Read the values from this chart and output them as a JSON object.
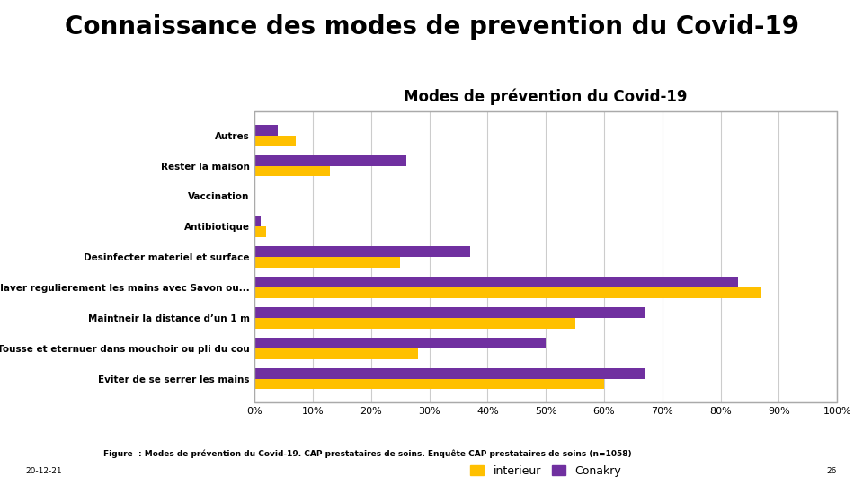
{
  "title_main": "Connaissance des modes de prevention du Covid-19",
  "chart_title": "Modes de prévention du Covid-19",
  "categories": [
    "Autres",
    "Rester la maison",
    "Vaccination",
    "Antibiotique",
    "Desinfecter materiel et surface",
    "Se laver regulierement les mains avec Savon ou...",
    "Maintneir la distance d’un 1 m",
    "Tousse et eternuer dans mouchoir ou pli du cou",
    "Eviter de se serrer les mains"
  ],
  "interieur": [
    7,
    13,
    0,
    2,
    25,
    87,
    55,
    28,
    60
  ],
  "conakry": [
    4,
    26,
    0,
    1,
    37,
    83,
    67,
    50,
    67
  ],
  "color_interieur": "#FFC000",
  "color_conakry": "#7030A0",
  "legend_interieur": "interieur",
  "legend_conakry": "Conakry",
  "xlim": [
    0,
    100
  ],
  "xticks": [
    0,
    10,
    20,
    30,
    40,
    50,
    60,
    70,
    80,
    90,
    100
  ],
  "xtick_labels": [
    "0%",
    "10%",
    "20%",
    "30%",
    "40%",
    "50%",
    "60%",
    "70%",
    "80%",
    "90%",
    "100%"
  ],
  "figure_caption": "Figure  : Modes de prévention du Covid-19. CAP prestataires de soins. Enquête CAP prestataires de soins (n=1058)",
  "date_label": "20-12-21",
  "page_label": "26",
  "bg_color": "#FFFFFF",
  "chart_bg_color": "#FFFFFF",
  "border_color": "#AAAAAA",
  "title_main_fontsize": 20,
  "chart_title_fontsize": 12,
  "bar_height": 0.35,
  "grid_color": "#CCCCCC"
}
